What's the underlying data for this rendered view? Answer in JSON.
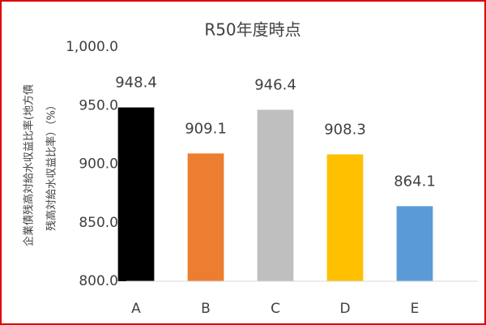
{
  "chart_data": {
    "type": "bar",
    "title": "R50年度時点",
    "ylabel": [
      "企業債残高対給水収益比率(地方債",
      "残高対給水収益比率）（%）"
    ],
    "categories": [
      "A",
      "B",
      "C",
      "D",
      "E"
    ],
    "values": [
      948.4,
      909.1,
      946.4,
      908.3,
      864.1
    ],
    "colors": [
      "#000000",
      "#ed7d31",
      "#bfbfbf",
      "#ffc000",
      "#5b9bd5"
    ],
    "ylim": [
      800,
      1000
    ],
    "yticks": [
      {
        "value": 800,
        "label": "800.0"
      },
      {
        "value": 850,
        "label": "850.0"
      },
      {
        "value": 900,
        "label": "900.0"
      },
      {
        "value": 950,
        "label": "950.0"
      },
      {
        "value": 1000,
        "label": "1,000.0"
      }
    ],
    "grid": false
  }
}
